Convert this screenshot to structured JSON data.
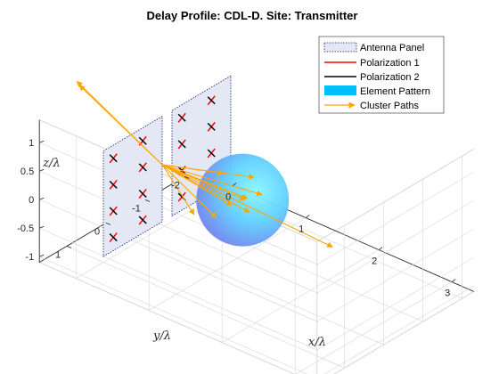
{
  "chart_data": {
    "type": "3d-antenna-pattern",
    "title": "Delay Profile: CDL-D. Site: Transmitter",
    "xlabel": "x/λ",
    "ylabel": "y/λ",
    "zlabel": "z/λ",
    "x_ticks": [
      "0",
      "1",
      "2",
      "3"
    ],
    "y_ticks": [
      "1",
      "0",
      "-1",
      "-2"
    ],
    "z_ticks": [
      "1",
      "0.5",
      "0",
      "-0.5",
      "-1"
    ],
    "xlim": [
      -0.5,
      3.3
    ],
    "ylim": [
      -2.3,
      1.7
    ],
    "zlim": [
      -1.1,
      1.4
    ],
    "grid": true,
    "legend_position": "top-right",
    "legend": [
      "Antenna Panel",
      "Polarization 1",
      "Polarization 2",
      "Element Pattern",
      "Cluster Paths"
    ],
    "antenna_panels": [
      {
        "x": 0,
        "y_range": [
          -0.5,
          1.0
        ],
        "z_range": [
          -1.0,
          0.85
        ]
      },
      {
        "x": 0,
        "y_range": [
          -2.25,
          -0.75
        ],
        "z_range": [
          -1.0,
          0.85
        ]
      }
    ],
    "element_grid": {
      "columns_per_panel": 2,
      "rows": 4
    },
    "element_pattern": {
      "shape": "sphere",
      "center": [
        1.1,
        -0.5,
        0
      ],
      "radius": 0.65
    },
    "cluster_paths": {
      "origin": [
        0,
        -0.5,
        0
      ],
      "max_length": 3.0,
      "count": 12
    },
    "colors": {
      "panel_fill": "#e4e8f5",
      "panel_edge": "#1a1a6a",
      "polarization_1": "#ff0000",
      "polarization_2": "#000000",
      "element_pattern": "#00bfff",
      "cluster_paths": "#ffa500",
      "axis": "#262626",
      "grid": "#dcdcdc"
    }
  }
}
